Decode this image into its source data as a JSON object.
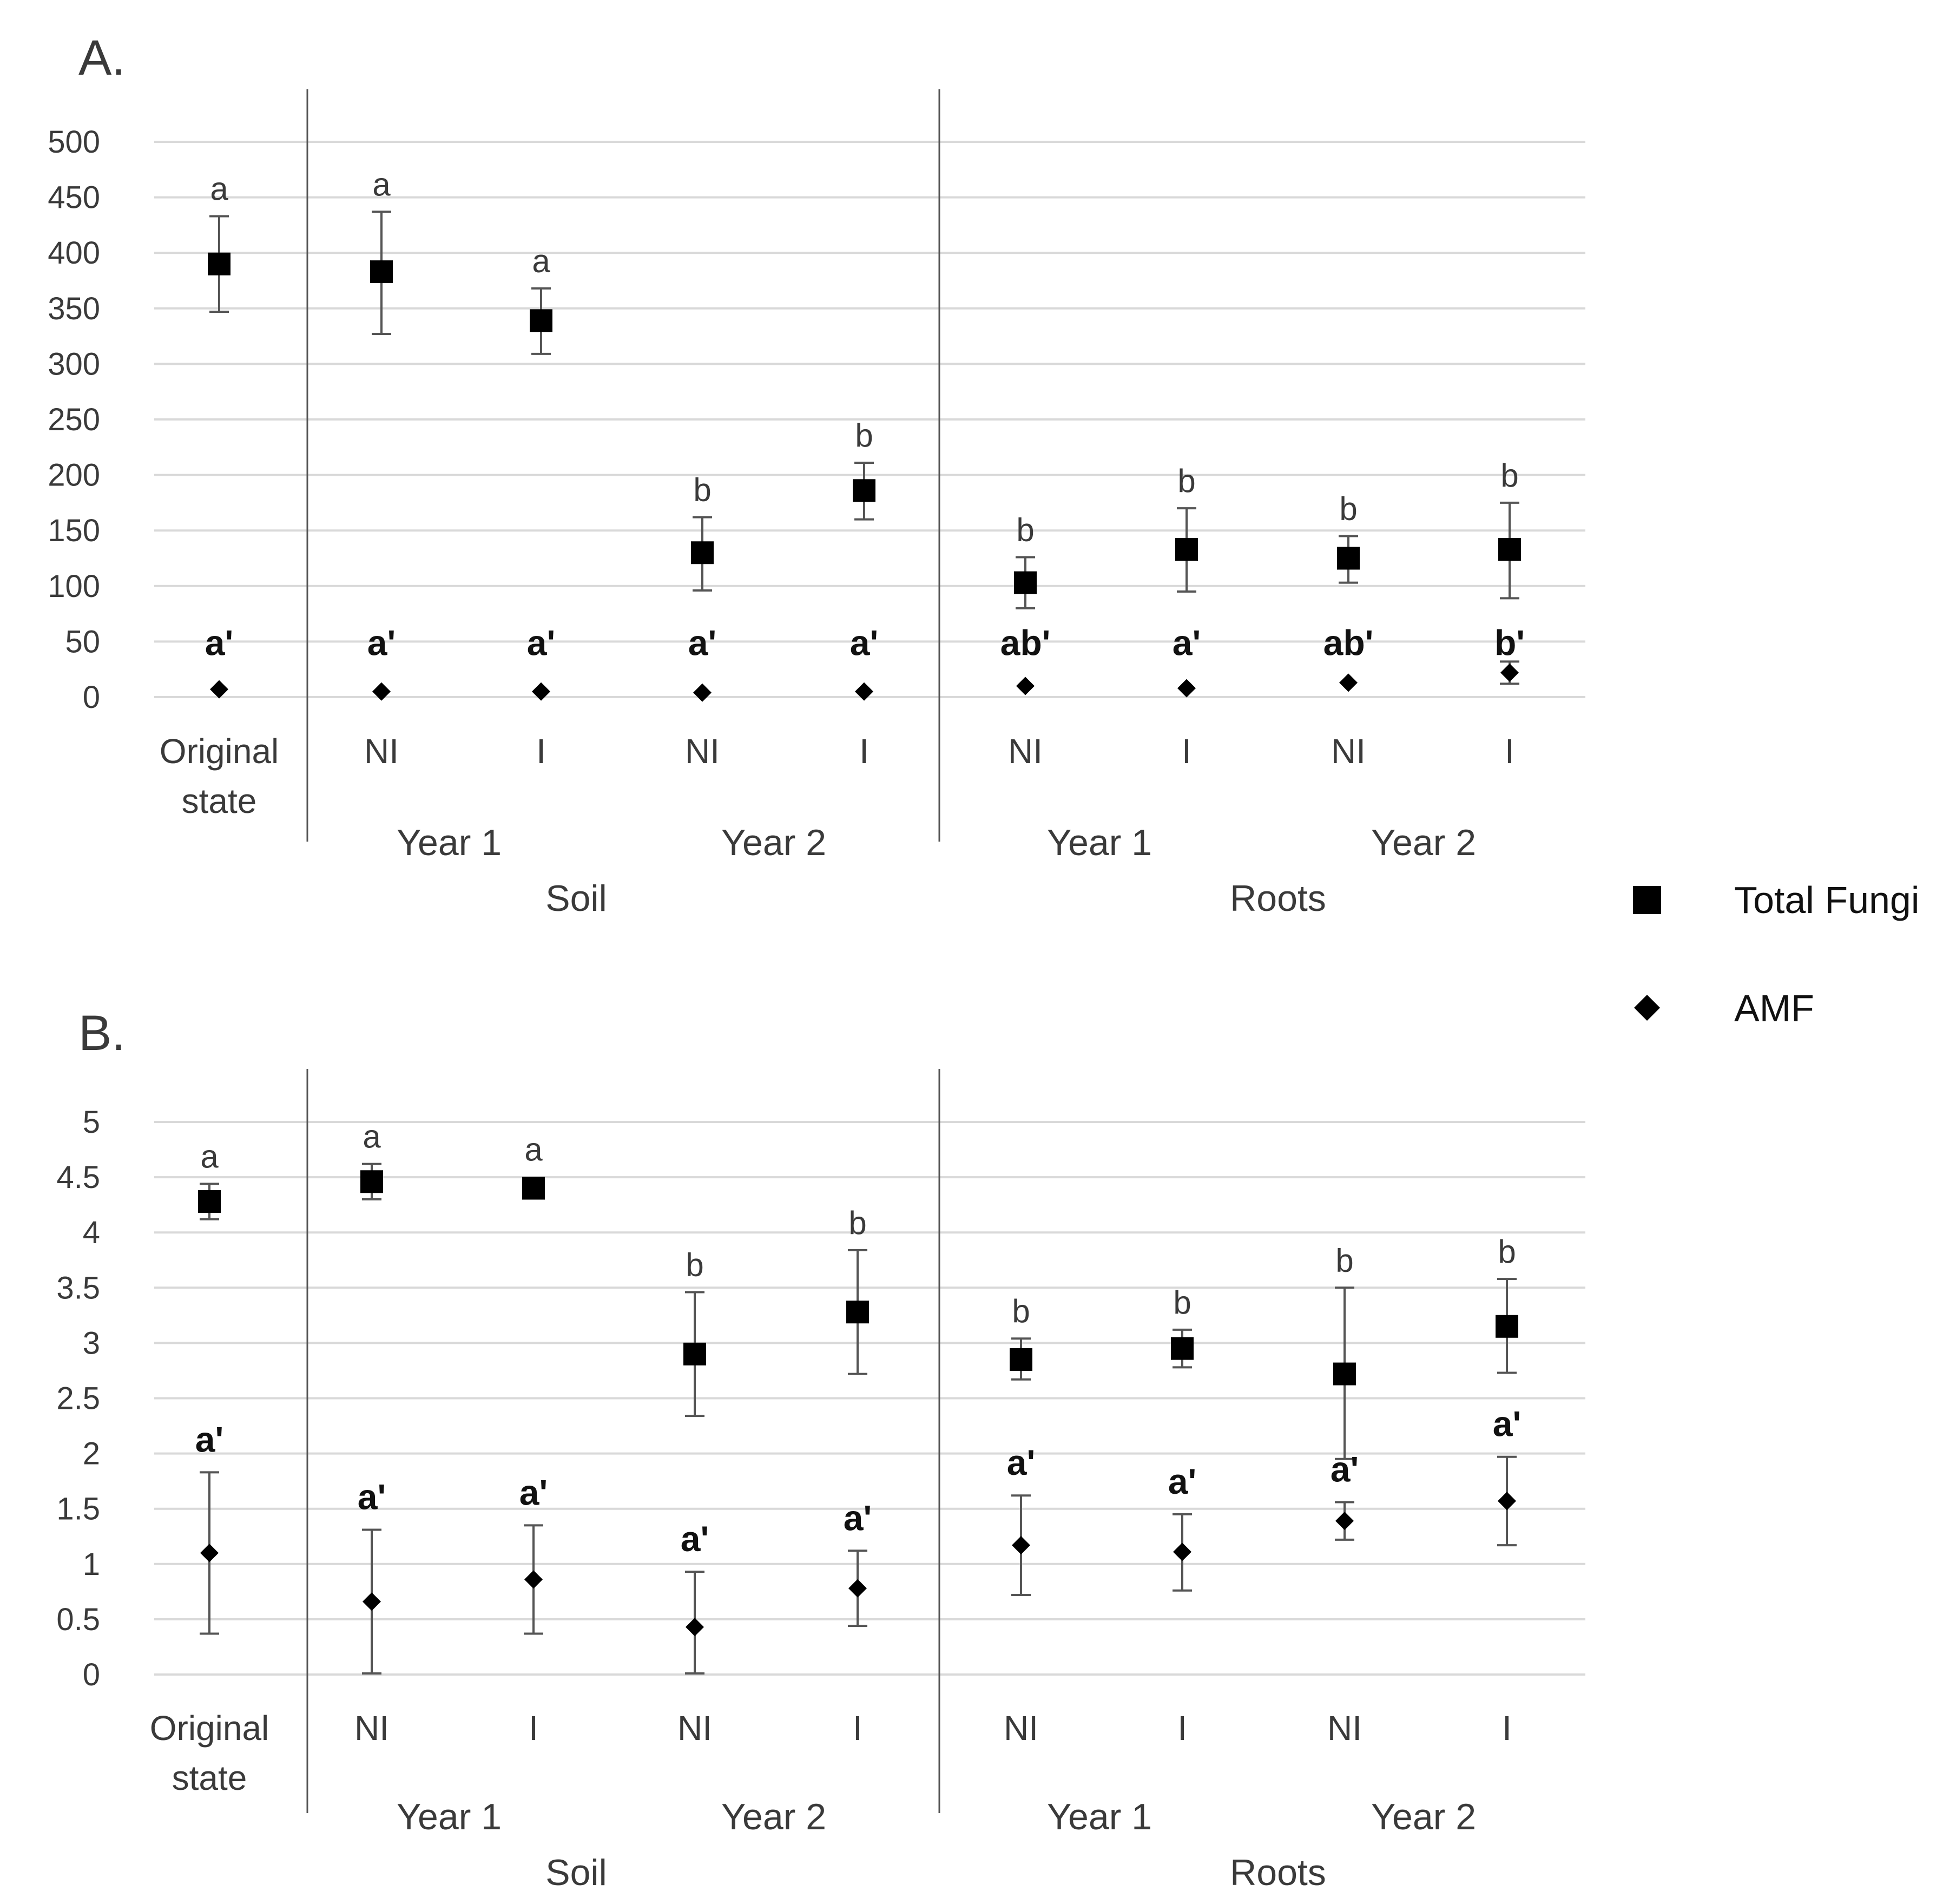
{
  "legend": {
    "fungi": "Total Fungi",
    "amf": "AMF"
  },
  "colors": {
    "grid": "#d9d9d9",
    "divider": "#555555",
    "marker": "#000000",
    "errorbar": "#555555",
    "text": "#3a3a3a"
  },
  "chart_data": [
    {
      "type": "scatter",
      "panel_label": "A.",
      "ylim": [
        0,
        500
      ],
      "yticks": [
        0,
        50,
        100,
        150,
        200,
        250,
        300,
        350,
        400,
        450,
        500
      ],
      "ytick_labels": [
        "0",
        "50",
        "100",
        "150",
        "200",
        "250",
        "300",
        "350",
        "400",
        "450",
        "500"
      ],
      "categories": [
        [
          "Original",
          "state"
        ],
        [
          "NI"
        ],
        [
          "I"
        ],
        [
          "NI"
        ],
        [
          "I"
        ],
        [
          "NI"
        ],
        [
          "I"
        ],
        [
          "NI"
        ],
        [
          "I"
        ]
      ],
      "year_labels": [
        "Year 1",
        "Year 2",
        "Year 1",
        "Year 2"
      ],
      "group_labels": [
        "Soil",
        "Roots"
      ],
      "series": [
        {
          "name": "Total Fungi",
          "marker": "square",
          "values": [
            390,
            383,
            339,
            130,
            186,
            103,
            133,
            125,
            133
          ],
          "err_low": [
            347,
            327,
            309,
            96,
            160,
            80,
            95,
            103,
            89
          ],
          "err_high": [
            433,
            437,
            368,
            162,
            211,
            126,
            170,
            145,
            175
          ],
          "sig": [
            "a",
            "a",
            "a",
            "b",
            "b",
            "b",
            "b",
            "b",
            "b"
          ]
        },
        {
          "name": "AMF",
          "marker": "diamond",
          "values": [
            7,
            5,
            5,
            4,
            5,
            10,
            8,
            13,
            22
          ],
          "err_low": [
            7,
            5,
            5,
            4,
            5,
            10,
            8,
            13,
            12
          ],
          "err_high": [
            7,
            5,
            5,
            4,
            5,
            10,
            8,
            13,
            32
          ],
          "sig": [
            "a'",
            "a'",
            "a'",
            "a'",
            "a'",
            "ab'",
            "a'",
            "ab'",
            "b'"
          ]
        }
      ]
    },
    {
      "type": "scatter",
      "panel_label": "B.",
      "ylim": [
        0,
        5
      ],
      "yticks": [
        0,
        0.5,
        1,
        1.5,
        2,
        2.5,
        3,
        3.5,
        4,
        4.5,
        5
      ],
      "ytick_labels": [
        "0",
        "0.5",
        "1",
        "1.5",
        "2",
        "2.5",
        "3",
        "3.5",
        "4",
        "4.5",
        "5"
      ],
      "categories": [
        [
          "Original",
          "state"
        ],
        [
          "NI"
        ],
        [
          "I"
        ],
        [
          "NI"
        ],
        [
          "I"
        ],
        [
          "NI"
        ],
        [
          "I"
        ],
        [
          "NI"
        ],
        [
          "I"
        ]
      ],
      "year_labels": [
        "Year 1",
        "Year 2",
        "Year 1",
        "Year 2"
      ],
      "group_labels": [
        "Soil",
        "Roots"
      ],
      "series": [
        {
          "name": "Total Fungi",
          "marker": "square",
          "values": [
            4.28,
            4.46,
            4.4,
            2.9,
            3.28,
            2.85,
            2.95,
            2.72,
            3.15
          ],
          "err_low": [
            4.12,
            4.3,
            4.38,
            2.34,
            2.72,
            2.67,
            2.78,
            1.95,
            2.73
          ],
          "err_high": [
            4.44,
            4.62,
            4.42,
            3.46,
            3.84,
            3.04,
            3.12,
            3.5,
            3.58
          ],
          "sig": [
            "a",
            "a",
            "a",
            "b",
            "b",
            "b",
            "b",
            "b",
            "b"
          ]
        },
        {
          "name": "AMF",
          "marker": "diamond",
          "values": [
            1.1,
            0.66,
            0.86,
            0.43,
            0.78,
            1.17,
            1.11,
            1.39,
            1.57
          ],
          "err_low": [
            0.37,
            0.01,
            0.37,
            0.01,
            0.44,
            0.72,
            0.76,
            1.22,
            1.17
          ],
          "err_high": [
            1.83,
            1.31,
            1.35,
            0.93,
            1.12,
            1.62,
            1.45,
            1.56,
            1.97
          ],
          "sig": [
            "a'",
            "a'",
            "a'",
            "a'",
            "a'",
            "a'",
            "a'",
            "a'",
            "a'"
          ]
        }
      ]
    }
  ]
}
